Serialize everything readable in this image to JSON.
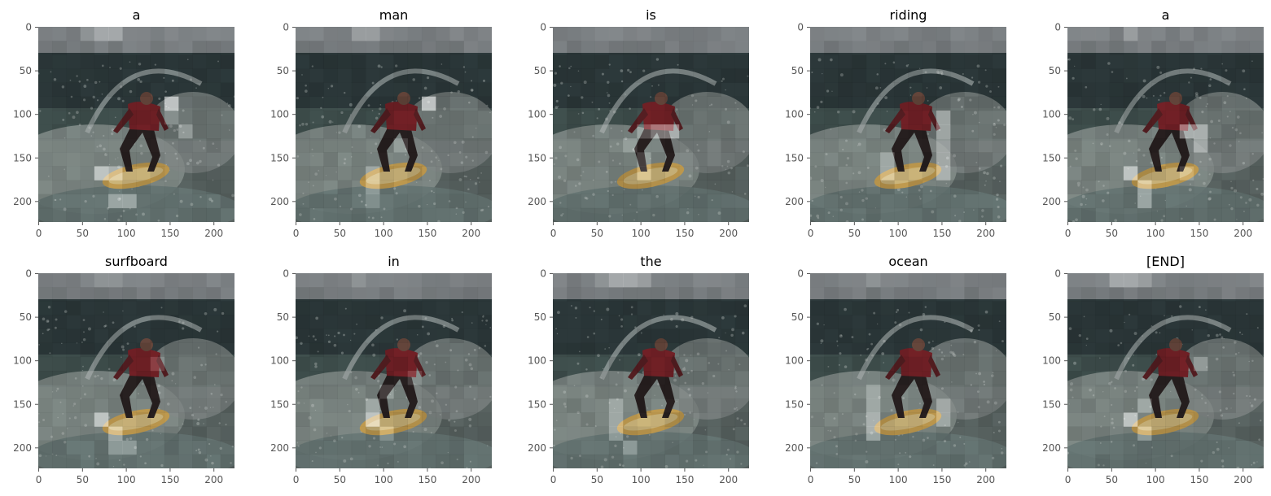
{
  "chart_data": {
    "type": "heatmap",
    "description_scale": "attention overlay on 224x224 image, 14x14 patches (16px each); weights in 0..1",
    "xlim": [
      0,
      223
    ],
    "ylim": [
      223,
      0
    ],
    "xticks": [
      0,
      50,
      100,
      150,
      200
    ],
    "yticks": [
      0,
      50,
      100,
      150,
      200
    ],
    "grid": false,
    "colors": {
      "overlay": "#ffffff",
      "tick": "#555555",
      "title": "#000000"
    },
    "panels": [
      {
        "title": "a",
        "focus": [
          [
            0,
            4,
            0.6
          ],
          [
            0,
            5,
            0.6
          ],
          [
            0,
            3,
            0.4
          ],
          [
            5,
            9,
            0.9
          ],
          [
            10,
            4,
            0.8
          ],
          [
            10,
            5,
            0.6
          ],
          [
            12,
            5,
            0.6
          ],
          [
            12,
            6,
            0.6
          ],
          [
            7,
            10,
            0.5
          ],
          [
            6,
            9,
            0.4
          ]
        ]
      },
      {
        "title": "man",
        "focus": [
          [
            5,
            9,
            0.9
          ],
          [
            0,
            4,
            0.5
          ],
          [
            0,
            5,
            0.5
          ],
          [
            8,
            7,
            0.4
          ],
          [
            10,
            5,
            0.5
          ],
          [
            11,
            5,
            0.5
          ],
          [
            12,
            5,
            0.4
          ]
        ]
      },
      {
        "title": "is",
        "focus": [
          [
            7,
            7,
            0.7
          ],
          [
            7,
            8,
            0.7
          ],
          [
            7,
            6,
            0.5
          ],
          [
            8,
            5,
            0.4
          ],
          [
            9,
            6,
            0.4
          ],
          [
            10,
            6,
            0.4
          ],
          [
            0,
            4,
            0.3
          ]
        ]
      },
      {
        "title": "riding",
        "focus": [
          [
            6,
            9,
            0.6
          ],
          [
            7,
            9,
            0.6
          ],
          [
            8,
            9,
            0.5
          ],
          [
            9,
            5,
            0.5
          ],
          [
            10,
            5,
            0.5
          ],
          [
            9,
            9,
            0.5
          ],
          [
            10,
            9,
            0.6
          ],
          [
            0,
            3,
            0.3
          ]
        ]
      },
      {
        "title": "a",
        "focus": [
          [
            0,
            4,
            0.5
          ],
          [
            7,
            8,
            0.7
          ],
          [
            7,
            9,
            0.7
          ],
          [
            8,
            9,
            0.6
          ],
          [
            10,
            4,
            0.8
          ],
          [
            11,
            5,
            0.6
          ],
          [
            12,
            5,
            0.6
          ],
          [
            10,
            8,
            0.4
          ]
        ]
      },
      {
        "title": "surfboard",
        "focus": [
          [
            10,
            4,
            0.8
          ],
          [
            11,
            5,
            0.6
          ],
          [
            12,
            5,
            0.5
          ],
          [
            12,
            6,
            0.5
          ],
          [
            6,
            8,
            0.4
          ],
          [
            0,
            4,
            0.4
          ],
          [
            0,
            5,
            0.4
          ]
        ]
      },
      {
        "title": "in",
        "focus": [
          [
            10,
            5,
            0.8
          ],
          [
            9,
            5,
            0.5
          ],
          [
            8,
            6,
            0.4
          ],
          [
            11,
            6,
            0.4
          ],
          [
            0,
            4,
            0.4
          ],
          [
            7,
            8,
            0.4
          ]
        ]
      },
      {
        "title": "the",
        "focus": [
          [
            0,
            4,
            0.6
          ],
          [
            0,
            5,
            0.6
          ],
          [
            0,
            6,
            0.5
          ],
          [
            0,
            3,
            0.4
          ],
          [
            9,
            4,
            0.5
          ],
          [
            10,
            4,
            0.5
          ],
          [
            11,
            4,
            0.5
          ],
          [
            12,
            5,
            0.5
          ]
        ]
      },
      {
        "title": "ocean",
        "focus": [
          [
            10,
            4,
            0.6
          ],
          [
            11,
            4,
            0.6
          ],
          [
            9,
            4,
            0.5
          ],
          [
            8,
            4,
            0.5
          ],
          [
            9,
            9,
            0.5
          ],
          [
            10,
            9,
            0.5
          ],
          [
            0,
            4,
            0.4
          ]
        ]
      },
      {
        "title": "[END]",
        "focus": [
          [
            0,
            3,
            0.6
          ],
          [
            0,
            4,
            0.6
          ],
          [
            0,
            5,
            0.5
          ],
          [
            10,
            4,
            0.8
          ],
          [
            9,
            5,
            0.5
          ],
          [
            6,
            9,
            0.5
          ],
          [
            11,
            5,
            0.5
          ]
        ]
      }
    ]
  }
}
